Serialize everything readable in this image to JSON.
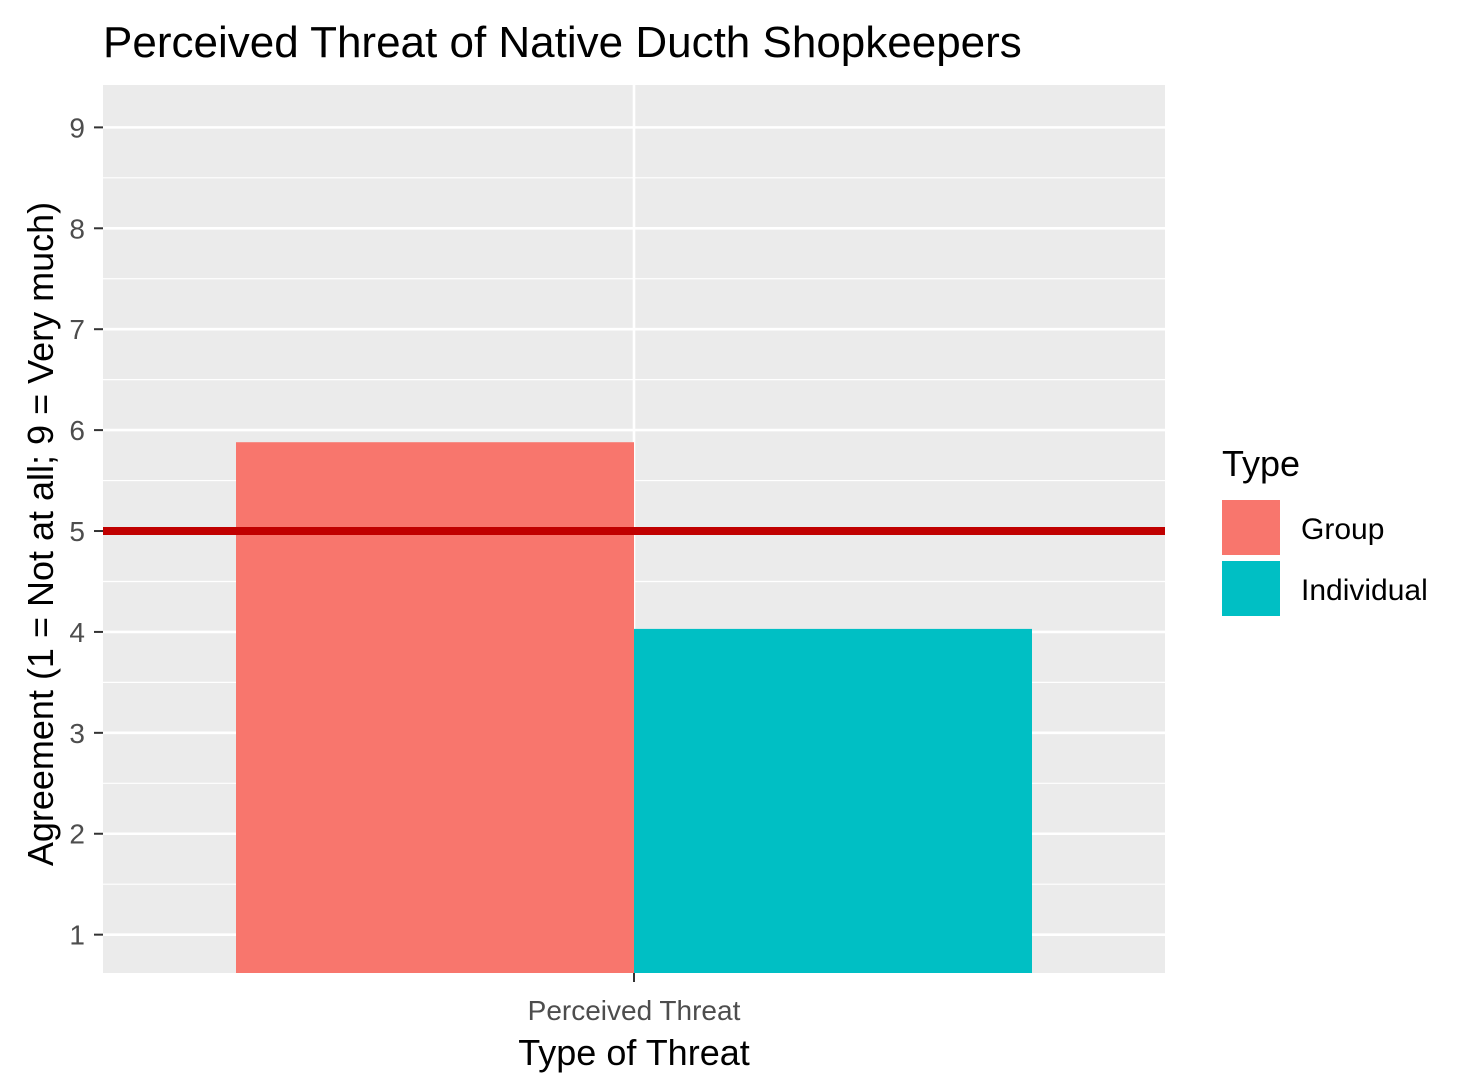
{
  "chart_data": {
    "type": "bar",
    "title": "Perceived Threat of Native Ducth Shopkeepers",
    "xlabel": "Type of Threat",
    "ylabel": "Agreement (1 = Not at all; 9 = Very much)",
    "categories": [
      "Perceived Threat"
    ],
    "series": [
      {
        "name": "Group",
        "values": [
          5.88
        ],
        "color": "#F8766D"
      },
      {
        "name": "Individual",
        "values": [
          4.03
        ],
        "color": "#00BFC4"
      }
    ],
    "yticks": [
      1,
      2,
      3,
      4,
      5,
      6,
      7,
      8,
      9
    ],
    "ylim": [
      0.62,
      9.42
    ],
    "bar_base": 0.62,
    "reference_line": {
      "value": 5,
      "color": "#C00000"
    },
    "grid": true,
    "panel_background": "#EBEBEB",
    "legend": {
      "title": "Type",
      "position": "right",
      "entries": [
        "Group",
        "Individual"
      ]
    }
  }
}
